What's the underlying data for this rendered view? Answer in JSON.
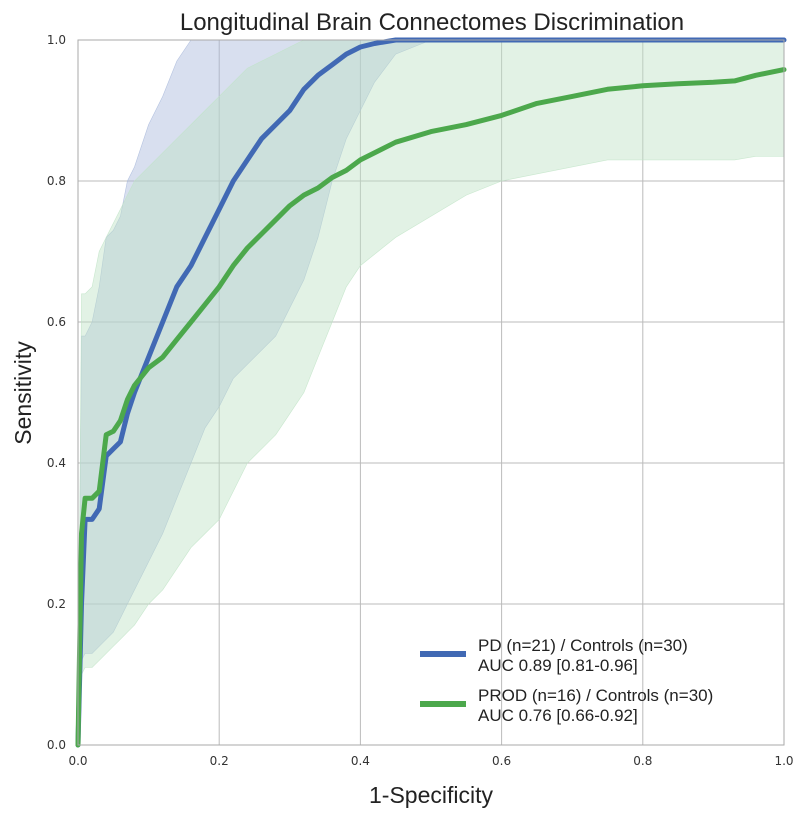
{
  "chart_data": {
    "type": "line",
    "title": "Longitudinal Brain Connectomes Discrimination",
    "xlabel": "1-Specificity",
    "ylabel": "Sensitivity",
    "xlim": [
      0,
      1
    ],
    "ylim": [
      0,
      1
    ],
    "xticks": [
      "0.0",
      "0.2",
      "0.4",
      "0.6",
      "0.8",
      "1.0"
    ],
    "yticks": [
      "0.0",
      "0.2",
      "0.4",
      "0.6",
      "0.8",
      "1.0"
    ],
    "grid": true,
    "legend_position": "bottom-right",
    "series": [
      {
        "name": "PD (n=21) / Controls (n=30)",
        "auc": "AUC 0.89 [0.81-0.96]",
        "color": "#4169b4",
        "band_color": "#a8b8db",
        "x": [
          0,
          0.005,
          0.01,
          0.02,
          0.03,
          0.04,
          0.05,
          0.06,
          0.07,
          0.08,
          0.1,
          0.12,
          0.14,
          0.16,
          0.18,
          0.2,
          0.22,
          0.24,
          0.26,
          0.28,
          0.3,
          0.32,
          0.34,
          0.36,
          0.38,
          0.4,
          0.42,
          0.45,
          0.5,
          0.6,
          0.8,
          1.0
        ],
        "y": [
          0,
          0.2,
          0.32,
          0.32,
          0.335,
          0.41,
          0.42,
          0.43,
          0.47,
          0.5,
          0.55,
          0.6,
          0.65,
          0.68,
          0.72,
          0.76,
          0.8,
          0.83,
          0.86,
          0.88,
          0.9,
          0.93,
          0.95,
          0.965,
          0.98,
          0.99,
          0.995,
          1.0,
          1.0,
          1.0,
          1.0,
          1.0
        ],
        "lower": [
          0,
          0.12,
          0.13,
          0.13,
          0.14,
          0.15,
          0.16,
          0.18,
          0.2,
          0.22,
          0.26,
          0.3,
          0.35,
          0.4,
          0.45,
          0.48,
          0.52,
          0.54,
          0.56,
          0.58,
          0.62,
          0.66,
          0.72,
          0.8,
          0.86,
          0.9,
          0.94,
          0.98,
          1.0,
          1.0,
          1.0,
          1.0
        ],
        "upper": [
          0,
          0.58,
          0.58,
          0.6,
          0.65,
          0.72,
          0.73,
          0.75,
          0.8,
          0.82,
          0.88,
          0.92,
          0.97,
          1.0,
          1.0,
          1.0,
          1.0,
          1.0,
          1.0,
          1.0,
          1.0,
          1.0,
          1.0,
          1.0,
          1.0,
          1.0,
          1.0,
          1.0,
          1.0,
          1.0,
          1.0,
          1.0
        ]
      },
      {
        "name": "PROD (n=16) / Controls (n=30)",
        "auc": "AUC 0.76 [0.66-0.92]",
        "color": "#4ca84c",
        "band_color": "#bfe3c5",
        "x": [
          0,
          0.005,
          0.01,
          0.02,
          0.03,
          0.04,
          0.05,
          0.06,
          0.07,
          0.08,
          0.1,
          0.12,
          0.14,
          0.16,
          0.18,
          0.2,
          0.22,
          0.24,
          0.26,
          0.28,
          0.3,
          0.32,
          0.34,
          0.36,
          0.38,
          0.4,
          0.45,
          0.5,
          0.55,
          0.6,
          0.65,
          0.7,
          0.75,
          0.8,
          0.85,
          0.9,
          0.93,
          0.96,
          1.0
        ],
        "y": [
          0,
          0.3,
          0.35,
          0.35,
          0.36,
          0.44,
          0.445,
          0.46,
          0.49,
          0.51,
          0.535,
          0.55,
          0.575,
          0.6,
          0.625,
          0.65,
          0.68,
          0.705,
          0.725,
          0.745,
          0.765,
          0.78,
          0.79,
          0.805,
          0.815,
          0.83,
          0.855,
          0.87,
          0.88,
          0.893,
          0.91,
          0.92,
          0.93,
          0.935,
          0.938,
          0.94,
          0.942,
          0.95,
          0.958
        ],
        "lower": [
          0,
          0.1,
          0.11,
          0.11,
          0.12,
          0.13,
          0.14,
          0.15,
          0.16,
          0.17,
          0.2,
          0.22,
          0.25,
          0.28,
          0.3,
          0.32,
          0.36,
          0.4,
          0.42,
          0.44,
          0.47,
          0.5,
          0.55,
          0.6,
          0.65,
          0.68,
          0.72,
          0.75,
          0.78,
          0.8,
          0.81,
          0.82,
          0.83,
          0.83,
          0.83,
          0.83,
          0.83,
          0.835,
          0.835
        ],
        "upper": [
          0,
          0.64,
          0.64,
          0.65,
          0.7,
          0.72,
          0.74,
          0.76,
          0.78,
          0.8,
          0.82,
          0.84,
          0.86,
          0.88,
          0.9,
          0.92,
          0.94,
          0.96,
          0.97,
          0.98,
          0.99,
          1.0,
          1.0,
          1.0,
          1.0,
          1.0,
          1.0,
          1.0,
          1.0,
          1.0,
          1.0,
          1.0,
          1.0,
          1.0,
          1.0,
          1.0,
          1.0,
          1.0,
          1.0
        ]
      }
    ]
  }
}
